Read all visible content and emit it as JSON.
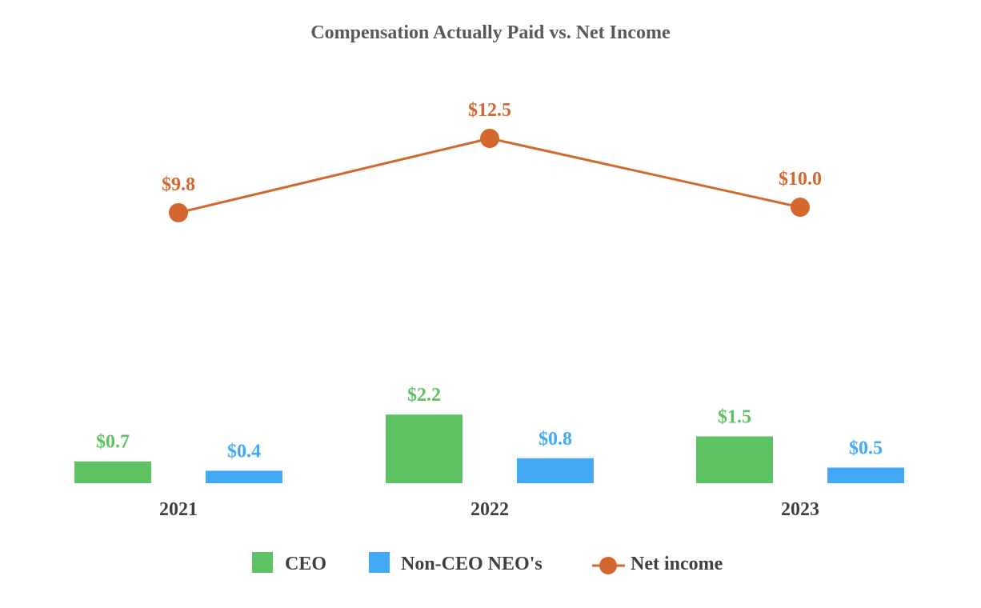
{
  "chart_data": {
    "type": "bar",
    "title": "Compensation Actually Paid vs. Net Income",
    "categories": [
      "2021",
      "2022",
      "2023"
    ],
    "series": [
      {
        "name": "CEO",
        "kind": "bar",
        "color": "#5ec162",
        "values": [
          0.7,
          2.2,
          1.5
        ],
        "labels": [
          "$0.7",
          "$2.2",
          "$1.5"
        ]
      },
      {
        "name": "Non-CEO NEO's",
        "kind": "bar",
        "color": "#41a9f5",
        "values": [
          0.4,
          0.8,
          0.5
        ],
        "labels": [
          "$0.4",
          "$0.8",
          "$0.5"
        ]
      },
      {
        "name": "Net income",
        "kind": "line",
        "color": "#d4672e",
        "values": [
          9.8,
          12.5,
          10.0
        ],
        "labels": [
          "$9.8",
          "$12.5",
          "$10.0"
        ]
      }
    ],
    "xlabel": "",
    "ylabel": "",
    "grid": false,
    "legend": "bottom"
  }
}
